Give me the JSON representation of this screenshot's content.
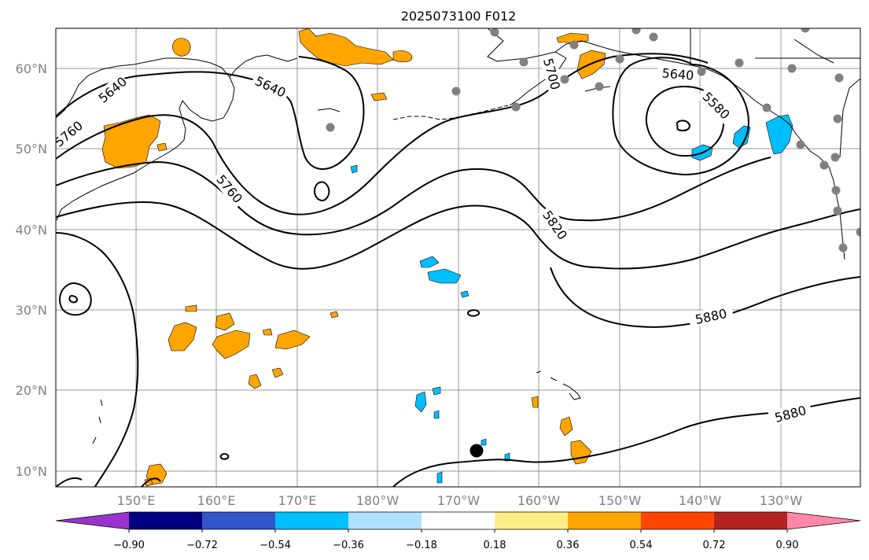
{
  "title": "2025073100 F012",
  "lat_labels": [
    "60°N",
    "50°N",
    "40°N",
    "30°N",
    "20°N",
    "10°N"
  ],
  "lon_labels": [
    "150°E",
    "160°E",
    "170°E",
    "180°W",
    "170°W",
    "160°W",
    "150°W",
    "140°W",
    "130°W"
  ],
  "contour_labels": [
    {
      "text": "5640"
    },
    {
      "text": "5640"
    },
    {
      "text": "5640"
    },
    {
      "text": "5700"
    },
    {
      "text": "5580"
    },
    {
      "text": "5760"
    },
    {
      "text": "5820"
    },
    {
      "text": "5880"
    },
    {
      "text": "5880"
    },
    {
      "text": "5760"
    }
  ],
  "colorbar": {
    "colors": [
      "#9933cc",
      "#000080",
      "#3355cc",
      "#00bfff",
      "#b0e0ff",
      "#ffffff",
      "#ffee88",
      "#ffa500",
      "#ff4500",
      "#b22222",
      "#ff88aa"
    ],
    "ticks": [
      "−0.90",
      "−0.72",
      "−0.54",
      "−0.36",
      "−0.18",
      "0.18",
      "0.36",
      "0.54",
      "0.72",
      "0.90"
    ]
  },
  "colors": {
    "positive": "#ffa500",
    "negative": "#00bfff",
    "station": "#808080",
    "storm_marker": "#000000"
  }
}
